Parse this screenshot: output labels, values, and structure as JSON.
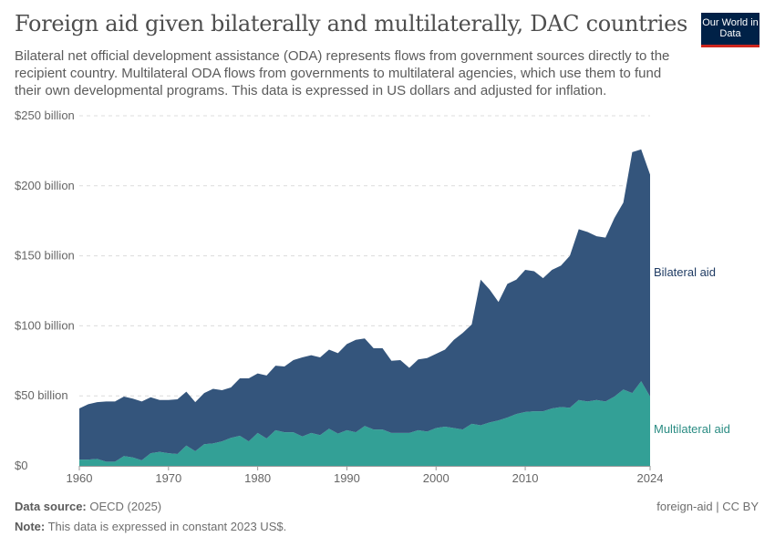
{
  "header": {
    "title": "Foreign aid given bilaterally and multilaterally, DAC countries",
    "subtitle": "Bilateral net official development assistance (ODA) represents flows from government sources directly to the recipient country. Multilateral ODA flows from governments to multilateral agencies, which use them to fund their own developmental programs. This data is expressed in US dollars and adjusted for inflation.",
    "logo_text": "Our World in Data"
  },
  "footer": {
    "source_label": "Data source:",
    "source": "OECD (2025)",
    "note_label": "Note:",
    "note": "This data is expressed in constant 2023 US$.",
    "license": "foreign-aid | CC BY"
  },
  "chart_data": {
    "type": "area",
    "stacked": true,
    "title": "Foreign aid given bilaterally and multilaterally, DAC countries",
    "xlabel": "",
    "ylabel": "",
    "ylim": [
      0,
      250
    ],
    "xlim": [
      1960,
      2024
    ],
    "grid": "horizontal dashed",
    "legend": "right, inline labels",
    "y_ticks": [
      {
        "value": 0,
        "label": "$0"
      },
      {
        "value": 50,
        "label": "$50 billion"
      },
      {
        "value": 100,
        "label": "$100 billion"
      },
      {
        "value": 150,
        "label": "$150 billion"
      },
      {
        "value": 200,
        "label": "$200 billion"
      },
      {
        "value": 250,
        "label": "$250 billion"
      }
    ],
    "x_ticks": [
      1960,
      1970,
      1980,
      1990,
      2000,
      2010,
      2024
    ],
    "x": [
      1960,
      1961,
      1962,
      1963,
      1964,
      1965,
      1966,
      1967,
      1968,
      1969,
      1970,
      1971,
      1972,
      1973,
      1974,
      1975,
      1976,
      1977,
      1978,
      1979,
      1980,
      1981,
      1982,
      1983,
      1984,
      1985,
      1986,
      1987,
      1988,
      1989,
      1990,
      1991,
      1992,
      1993,
      1994,
      1995,
      1996,
      1997,
      1998,
      1999,
      2000,
      2001,
      2002,
      2003,
      2004,
      2005,
      2006,
      2007,
      2008,
      2009,
      2010,
      2011,
      2012,
      2013,
      2014,
      2015,
      2016,
      2017,
      2018,
      2019,
      2020,
      2021,
      2022,
      2023,
      2024
    ],
    "series": [
      {
        "name": "Multilateral aid",
        "color": "#33a096",
        "label_color": "#2a8c83",
        "values": [
          4.5,
          4.5,
          5,
          3,
          3,
          7,
          6,
          4,
          9,
          10,
          9,
          8.5,
          14.5,
          10.5,
          15.5,
          16,
          17.5,
          20,
          21.5,
          17.5,
          23.5,
          19.5,
          25.5,
          24,
          24,
          21,
          23.5,
          22,
          26.5,
          23,
          25.5,
          24,
          28.5,
          26,
          26,
          23.5,
          23.5,
          23.5,
          25.5,
          24.5,
          27,
          28,
          27,
          26,
          30,
          29,
          31,
          32.5,
          34.5,
          37,
          38.5,
          39,
          39,
          41,
          42,
          41.5,
          47,
          46,
          47,
          46,
          49.5,
          54.5,
          52,
          60.5,
          49.5
        ]
      },
      {
        "name": "Bilateral aid",
        "color": "#34557c",
        "label_color": "#1f3b63",
        "values": [
          36.5,
          39.5,
          40.5,
          43,
          43,
          42.5,
          42,
          42,
          40,
          37,
          38,
          39,
          38.5,
          35,
          36.5,
          39,
          36.5,
          36,
          41,
          45,
          42.5,
          45,
          46,
          47,
          51.5,
          56.5,
          55.5,
          55.5,
          56.5,
          57.5,
          61.5,
          66,
          62.5,
          58,
          58,
          51.5,
          52,
          46.5,
          50.5,
          52.5,
          53,
          55,
          63,
          69,
          71,
          104,
          95,
          84.5,
          95.5,
          96,
          101.5,
          100,
          95,
          99,
          101,
          108.5,
          122,
          121,
          117,
          117,
          127.5,
          133.5,
          172,
          165.5,
          158.5
        ]
      }
    ],
    "units": "billion US$ (constant 2023)"
  }
}
